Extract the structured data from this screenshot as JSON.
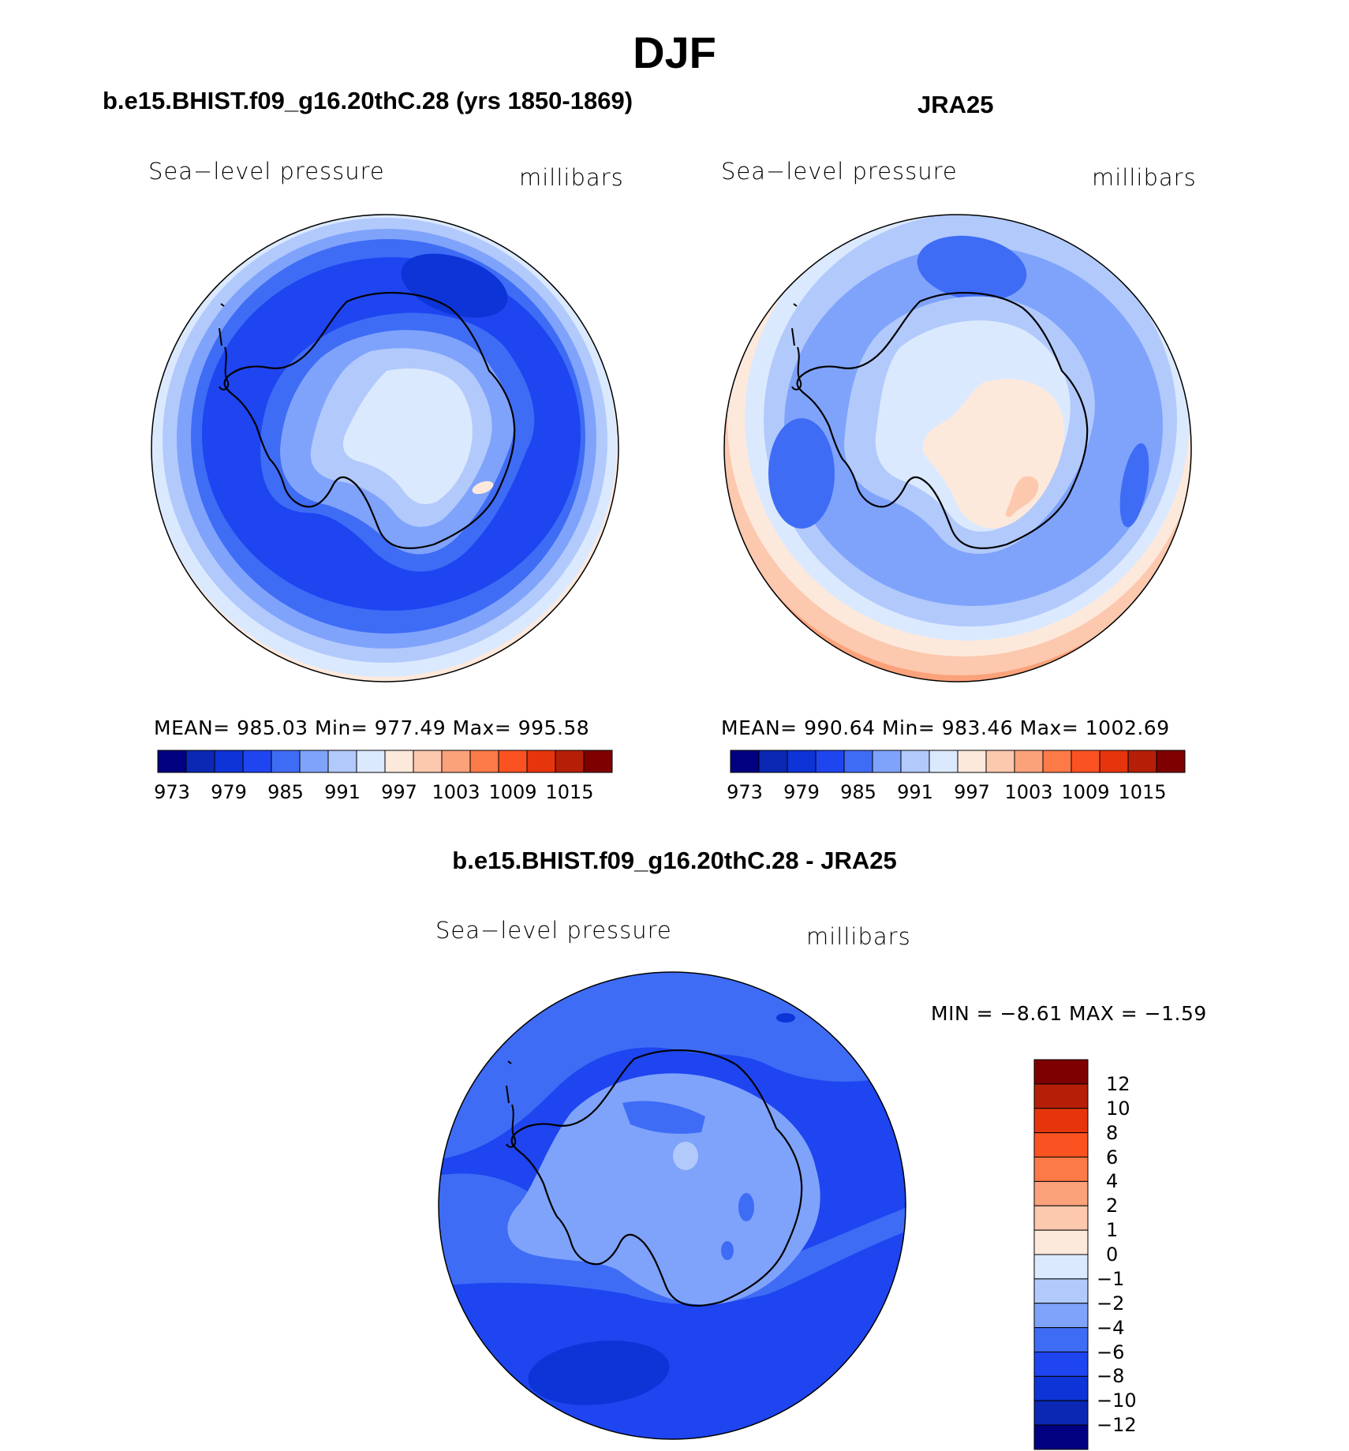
{
  "main_title": "DJF",
  "panels": [
    {
      "case_title": "b.e15.BHIST.f09_g16.20thC.28 (yrs 1850-1869)",
      "variable": "Sea−level pressure",
      "units": "millibars",
      "stats": "MEAN=  985.03    Min=  977.49    Max=  995.58"
    },
    {
      "case_title": "JRA25",
      "variable": "Sea−level pressure",
      "units": "millibars",
      "stats": "MEAN=  990.64    Min=  983.46    Max=  1002.69"
    },
    {
      "case_title": "b.e15.BHIST.f09_g16.20thC.28 - JRA25",
      "variable": "Sea−level pressure",
      "units": "millibars",
      "stats": "MIN =    −8.61  MAX =    −1.59"
    }
  ],
  "abs_colorbar": {
    "colors": [
      "#000080",
      "#0b28b4",
      "#0d34d6",
      "#1e45f0",
      "#3f6cf5",
      "#7fa3fb",
      "#b2c9fc",
      "#dbe9fe",
      "#fde9db",
      "#fcc8ae",
      "#fba27a",
      "#fb7a48",
      "#fb5221",
      "#e6350c",
      "#b51f08",
      "#7f0000"
    ],
    "labels": [
      "973",
      "979",
      "985",
      "991",
      "997",
      "1003",
      "1009",
      "1015"
    ]
  },
  "diff_colorbar": {
    "colors": [
      "#7f0000",
      "#b51f08",
      "#e6350c",
      "#fb5221",
      "#fb7a48",
      "#fba27a",
      "#fcc8ae",
      "#fde9db",
      "#dbe9fe",
      "#b2c9fc",
      "#7fa3fb",
      "#3f6cf5",
      "#1e45f0",
      "#0d34d6",
      "#0b28b4",
      "#000080"
    ],
    "labels": [
      "12",
      "10",
      "8",
      "6",
      "4",
      "2",
      "1",
      "0",
      "−1",
      "−2",
      "−4",
      "−6",
      "−8",
      "−10",
      "−12"
    ]
  }
}
